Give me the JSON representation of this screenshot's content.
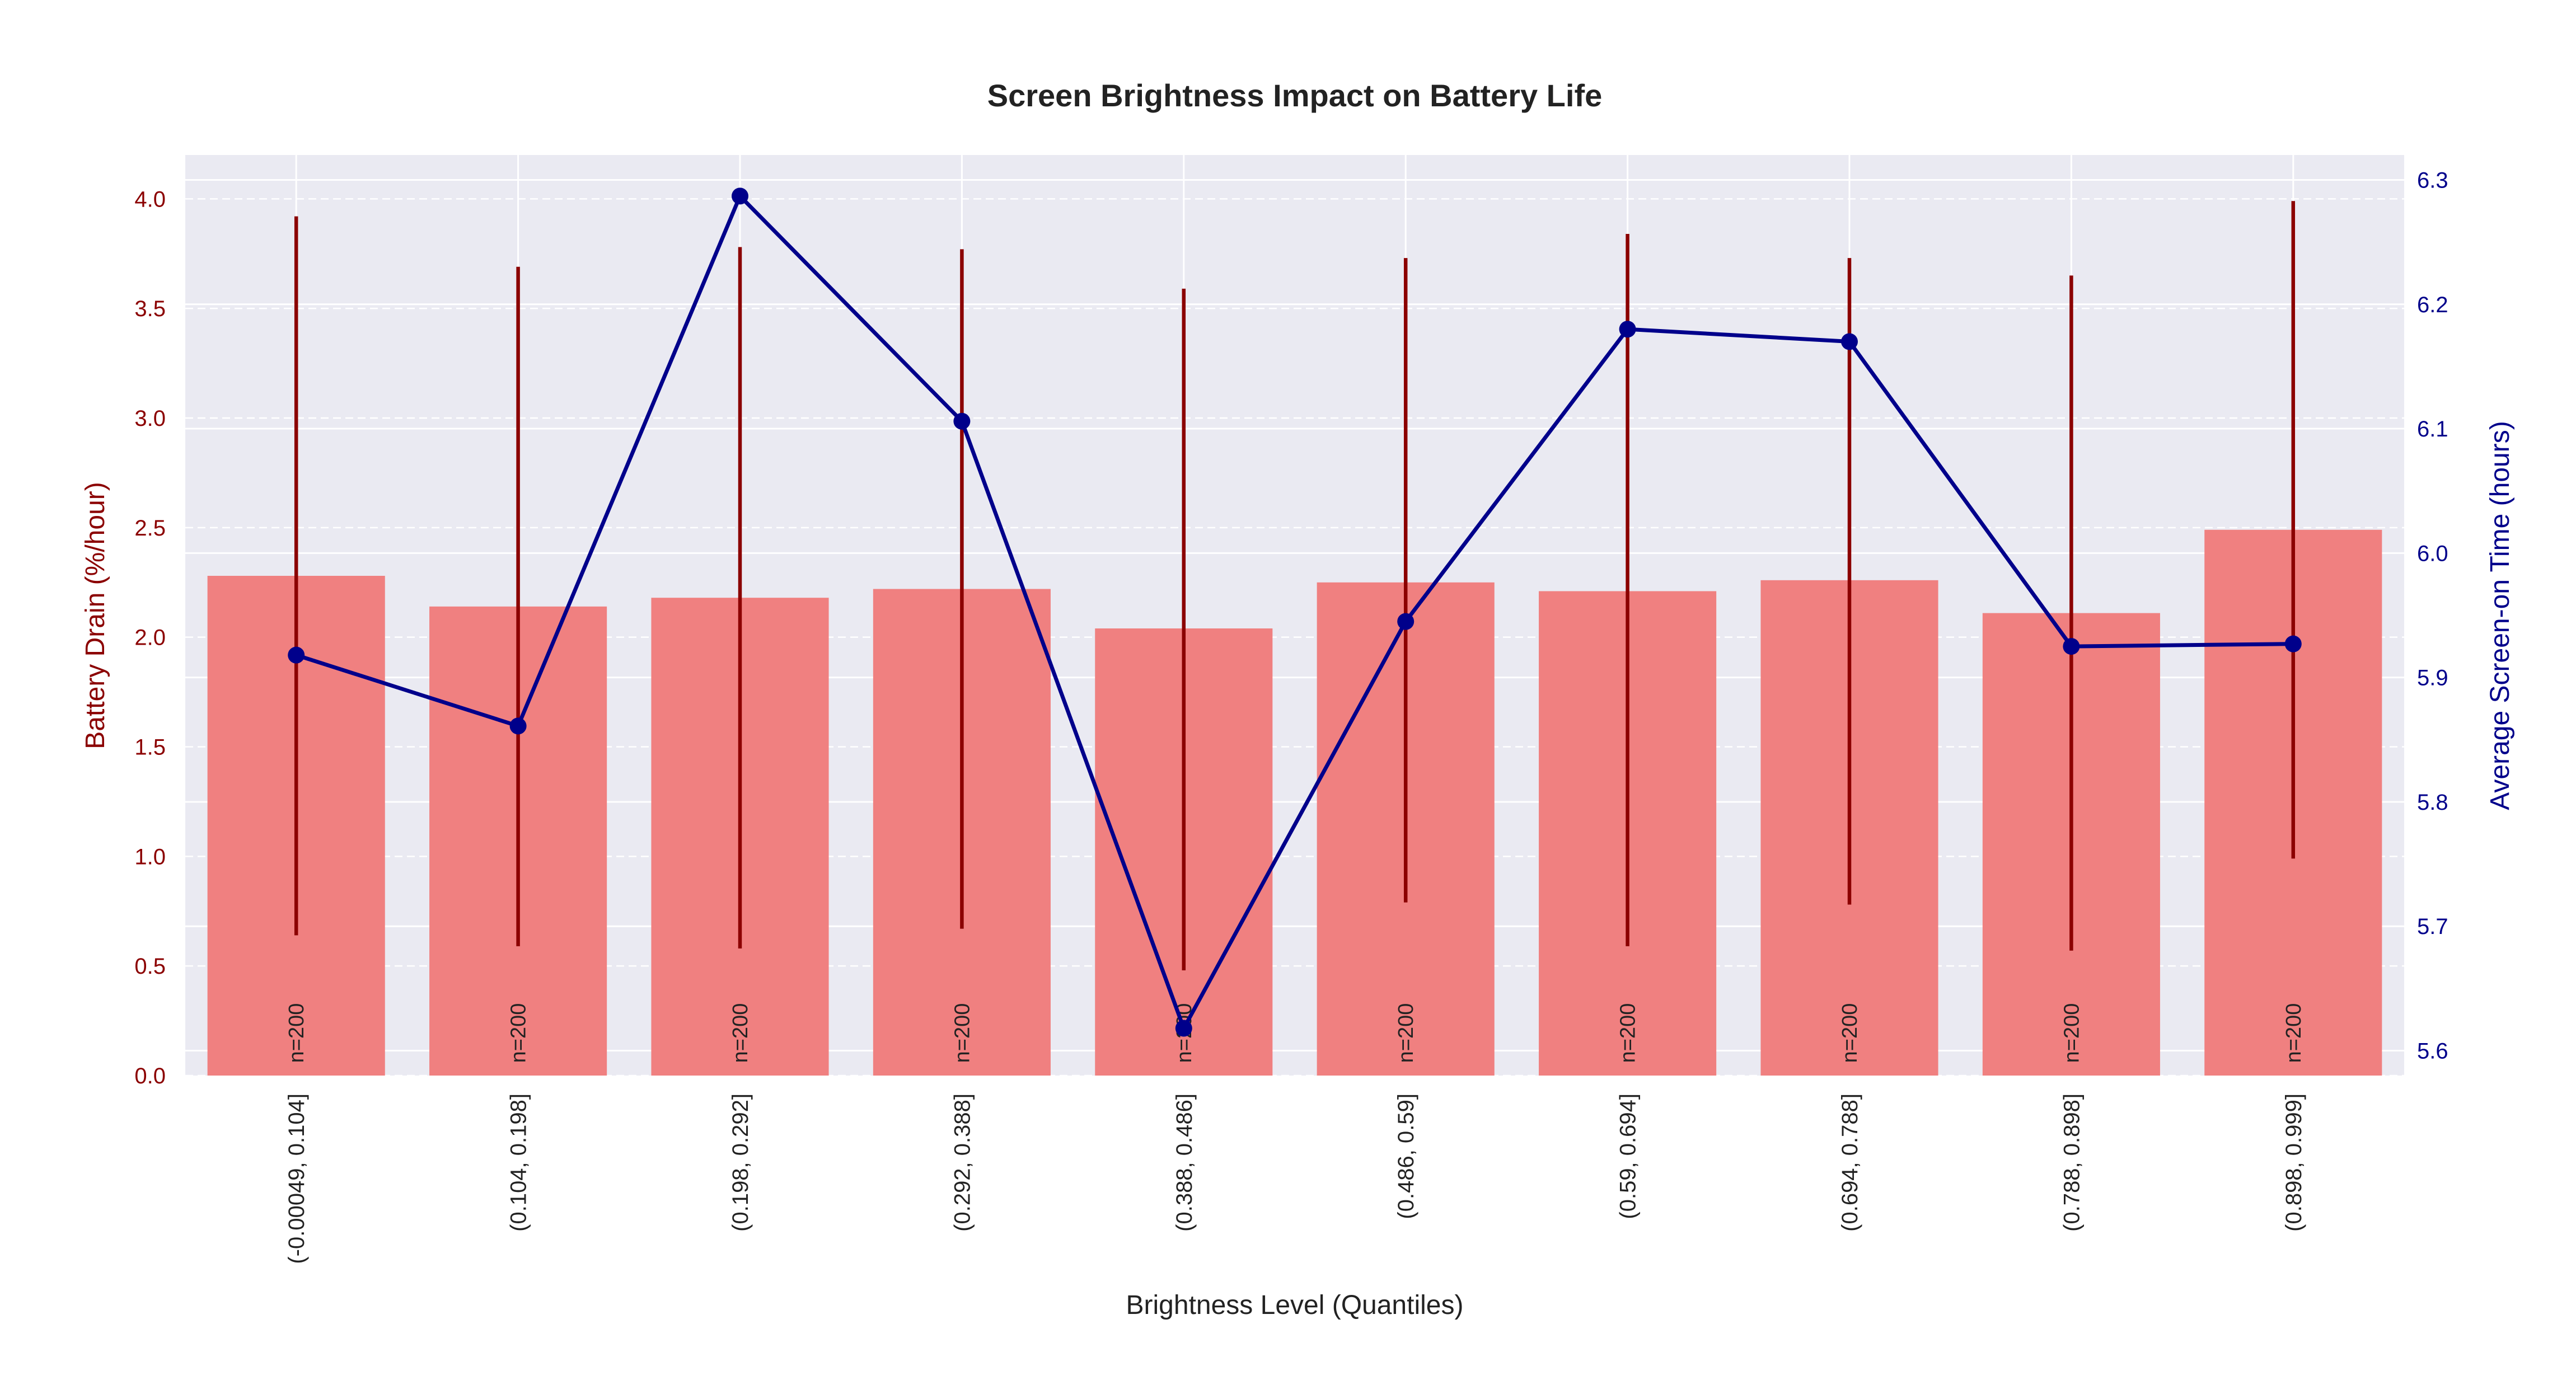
{
  "colors": {
    "plot_background": "#eaeaf2",
    "bar_fill": "#f08080",
    "error_bar": "#8b0000",
    "line": "#00008b",
    "left_axis": "#8b0000",
    "right_axis": "#00008b",
    "grid": "#ffffff"
  },
  "chart_data": {
    "type": "bar",
    "title": "Screen Brightness Impact on Battery Life",
    "xlabel": "Brightness Level (Quantiles)",
    "ylabel": "Battery Drain (%/hour)",
    "y2label": "Average Screen-on Time (hours)",
    "categories": [
      "(-0.00049, 0.104]",
      "(0.104, 0.198]",
      "(0.198, 0.292]",
      "(0.292, 0.388]",
      "(0.388, 0.486]",
      "(0.486, 0.59]",
      "(0.59, 0.694]",
      "(0.694, 0.788]",
      "(0.788, 0.898]",
      "(0.898, 0.999]"
    ],
    "count_labels": [
      "n=200",
      "n=200",
      "n=200",
      "n=200",
      "n=200",
      "n=200",
      "n=200",
      "n=200",
      "n=200",
      "n=200"
    ],
    "ylim": [
      0,
      4.2
    ],
    "y2lim": [
      5.58,
      6.32
    ],
    "yticks": [
      0.0,
      0.5,
      1.0,
      1.5,
      2.0,
      2.5,
      3.0,
      3.5,
      4.0
    ],
    "ytick_labels": [
      "0.0",
      "0.5",
      "1.0",
      "1.5",
      "2.0",
      "2.5",
      "3.0",
      "3.5",
      "4.0"
    ],
    "y2ticks": [
      5.6,
      5.7,
      5.8,
      5.9,
      6.0,
      6.1,
      6.2,
      6.3
    ],
    "y2tick_labels": [
      "5.6",
      "5.7",
      "5.8",
      "5.9",
      "6.0",
      "6.1",
      "6.2",
      "6.3"
    ],
    "grid": true,
    "series": [
      {
        "type": "bar",
        "axis": "left",
        "values": [
          2.28,
          2.14,
          2.18,
          2.22,
          2.04,
          2.25,
          2.21,
          2.26,
          2.11,
          2.49
        ],
        "error_low": [
          0.64,
          0.59,
          0.58,
          0.67,
          0.48,
          0.79,
          0.59,
          0.78,
          0.57,
          0.99
        ],
        "error_high": [
          3.92,
          3.69,
          3.78,
          3.77,
          3.59,
          3.73,
          3.84,
          3.73,
          3.65,
          3.99
        ]
      },
      {
        "type": "line",
        "axis": "right",
        "values": [
          5.918,
          5.861,
          6.287,
          6.106,
          5.618,
          5.945,
          6.18,
          6.17,
          5.925,
          5.927
        ]
      }
    ]
  }
}
